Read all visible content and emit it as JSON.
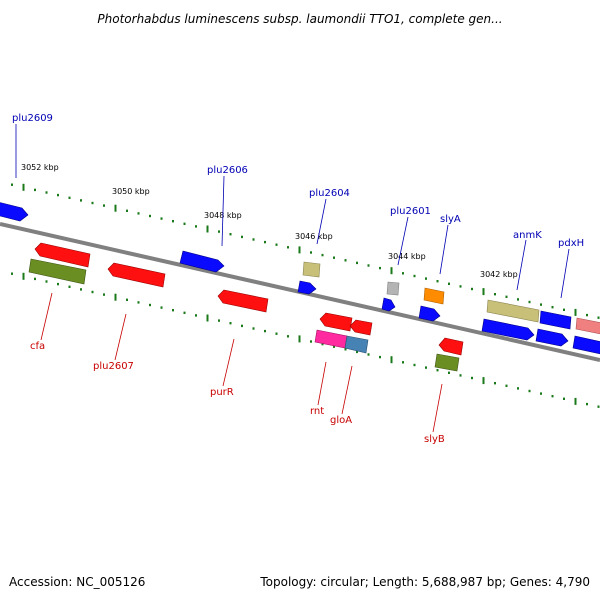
{
  "title": "Photorhabdus luminescens subsp. laumondii TTO1, complete gen...",
  "footer": {
    "accession": "Accession: NC_005126",
    "summary": "Topology: circular; Length: 5,688,987 bp; Genes: 4,790"
  },
  "colors": {
    "backbone": "#808080",
    "tick": "#1a7a1a",
    "forward_label": "#0000b4",
    "reverse_label": "#c80000",
    "blue": "#0a0aff",
    "red": "#ff1010",
    "olive": "#6b8e23",
    "tan": "#c8c078",
    "pink": "#ff2aa0",
    "steel": "#4682b4",
    "grey": "#b4b4b4",
    "orange": "#ff8c00",
    "salmon": "#f08080"
  },
  "scale_labels": [
    "3052 kbp",
    "3050 kbp",
    "3048 kbp",
    "3046 kbp",
    "3044 kbp",
    "3042 kbp"
  ],
  "forward_labels": [
    "plu2609",
    "plu2606",
    "plu2604",
    "plu2601",
    "slyA",
    "anmK",
    "pdxH"
  ],
  "reverse_labels": [
    "cfa",
    "plu2607",
    "purR",
    "rnt",
    "gloA",
    "slyB"
  ]
}
